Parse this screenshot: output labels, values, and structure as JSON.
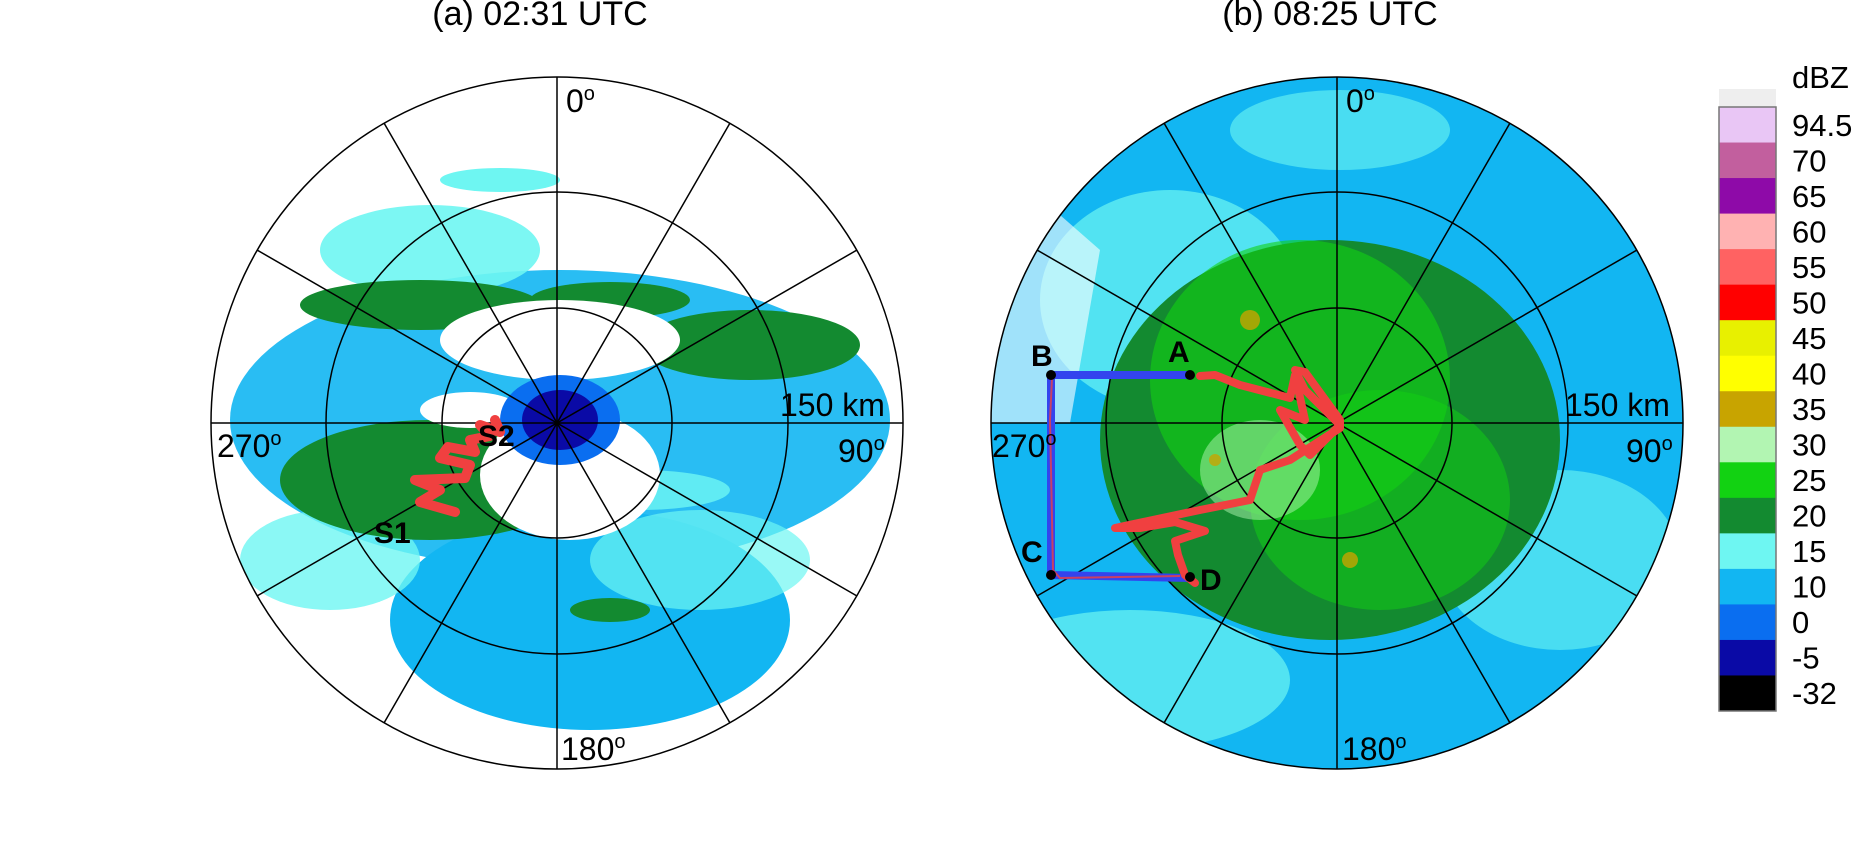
{
  "panels": [
    {
      "id": "a",
      "title": "(a) 02:31 UTC",
      "labels": {
        "north": "0",
        "east": "90",
        "south": "180",
        "west": "270",
        "range": "150 km"
      },
      "points": [
        {
          "name": "S1",
          "label": "S1"
        },
        {
          "name": "S2",
          "label": "S2"
        }
      ]
    },
    {
      "id": "b",
      "title": "(b) 08:25 UTC",
      "labels": {
        "north": "0",
        "east": "90",
        "south": "180",
        "west": "270",
        "range": "150 km"
      },
      "points": [
        {
          "name": "A",
          "label": "A"
        },
        {
          "name": "B",
          "label": "B"
        },
        {
          "name": "C",
          "label": "C"
        },
        {
          "name": "D",
          "label": "D"
        }
      ]
    }
  ],
  "degree_symbol": "o",
  "colorbar": {
    "unit": "dBZ",
    "levels": [
      "94.5",
      "70",
      "65",
      "60",
      "55",
      "50",
      "45",
      "40",
      "35",
      "30",
      "25",
      "20",
      "15",
      "10",
      "0",
      "-5",
      "-32"
    ],
    "colors": [
      "#e9c6f5",
      "#c25f9e",
      "#8e0aa8",
      "#ffb2b2",
      "#ff6262",
      "#ff0000",
      "#e8f000",
      "#ffff00",
      "#c8a400",
      "#b2f5b2",
      "#12d212",
      "#138a30",
      "#6ef6f2",
      "#12b6f2",
      "#0a6ef0",
      "#0a0aa6",
      "#000000"
    ]
  },
  "colors": {
    "track_red": "#f04040",
    "track_blue": "#3344ee"
  }
}
